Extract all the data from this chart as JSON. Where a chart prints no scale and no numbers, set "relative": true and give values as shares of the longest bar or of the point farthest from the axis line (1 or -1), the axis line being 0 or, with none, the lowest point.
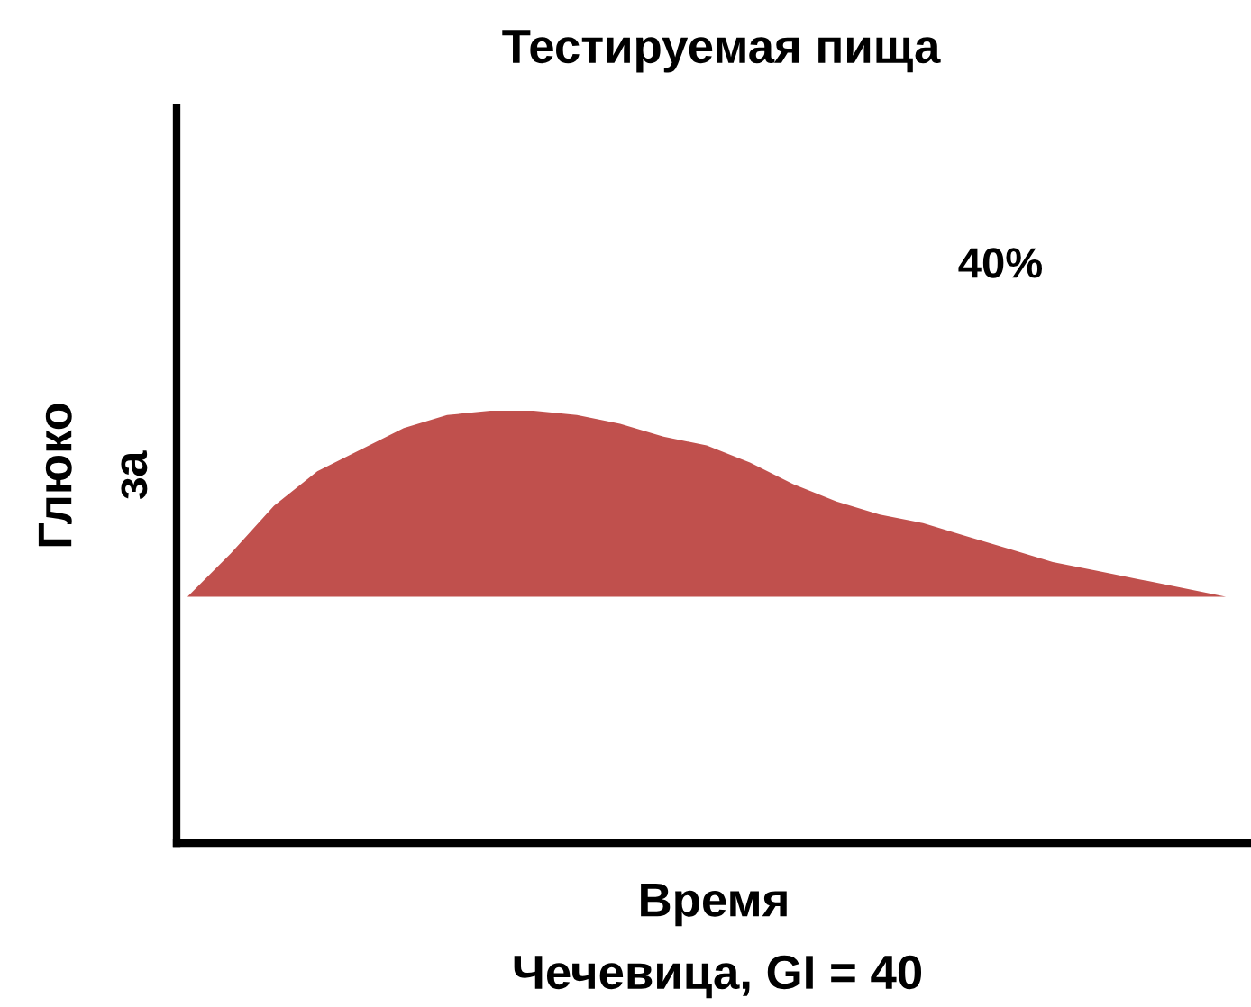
{
  "chart_data": {
    "type": "area",
    "title": "Тестируемая пища",
    "xlabel": "Время",
    "ylabel": "Глюко\nза",
    "relative": true,
    "categories": [
      null,
      null,
      null,
      null,
      null,
      null,
      null,
      null,
      null,
      null,
      null,
      null,
      null,
      null,
      null,
      null,
      null,
      null,
      null,
      null,
      null,
      null,
      null,
      null,
      null
    ],
    "series": [
      {
        "color": "#c0504d",
        "values": [
          0.57,
          0.67,
          0.78,
          0.86,
          0.91,
          0.96,
          0.99,
          1.0,
          1.0,
          0.99,
          0.97,
          0.94,
          0.92,
          0.88,
          0.83,
          0.79,
          0.76,
          0.74,
          0.71,
          0.68,
          0.65,
          0.63,
          0.61,
          0.59,
          0.57
        ]
      }
    ],
    "annotations": [
      "40%",
      "Чечевица, GI = 40"
    ],
    "grid": false,
    "legend": false
  }
}
